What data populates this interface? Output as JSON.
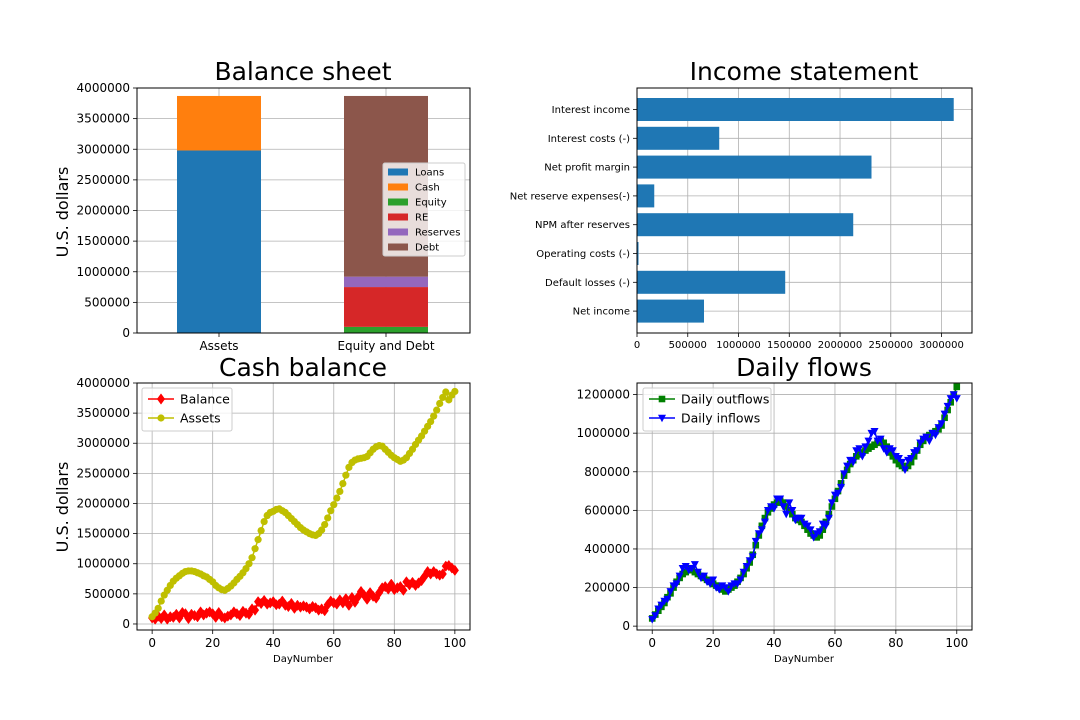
{
  "colors": {
    "c0": "#1f77b4",
    "c1": "#ff7f0e",
    "c2": "#2ca02c",
    "c3": "#d62728",
    "c4": "#9467bd",
    "c5": "#8c564b",
    "balance": "#ff0000",
    "assets": "#bfbf00",
    "outflows": "#008000",
    "inflows": "#0000ff",
    "grid": "#b0b0b0"
  },
  "chart_data": [
    {
      "type": "bar",
      "stacked": true,
      "title": "Balance sheet",
      "ylabel": "U.S. dollars",
      "xlabel": "",
      "ylim": [
        0,
        4000000
      ],
      "yticks": [
        0,
        500000,
        1000000,
        1500000,
        2000000,
        2500000,
        3000000,
        3500000,
        4000000
      ],
      "categories": [
        "Assets",
        "Equity and Debt"
      ],
      "series": [
        {
          "name": "Loans",
          "values": [
            2980000,
            0
          ],
          "color": "#1f77b4"
        },
        {
          "name": "Cash",
          "values": [
            890000,
            0
          ],
          "color": "#ff7f0e"
        },
        {
          "name": "Equity",
          "values": [
            0,
            100000
          ],
          "color": "#2ca02c"
        },
        {
          "name": "RE",
          "values": [
            0,
            650000
          ],
          "color": "#d62728"
        },
        {
          "name": "Reserves",
          "values": [
            0,
            170000
          ],
          "color": "#9467bd"
        },
        {
          "name": "Debt",
          "values": [
            0,
            2950000
          ],
          "color": "#8c564b"
        }
      ],
      "grid": true,
      "legend": "center-right"
    },
    {
      "type": "bar",
      "orientation": "horizontal",
      "title": "Income statement",
      "xlim": [
        0,
        3300000
      ],
      "xticks": [
        0,
        500000,
        1000000,
        1500000,
        2000000,
        2500000,
        3000000
      ],
      "categories": [
        "Interest income",
        "Interest costs (-)",
        "Net profit margin",
        "Net reserve expenses(-)",
        "NPM after reserves",
        "Operating costs (-)",
        "Default losses (-)",
        "Net income"
      ],
      "values": [
        3120000,
        810000,
        2310000,
        170000,
        2130000,
        15000,
        1460000,
        660000
      ],
      "color": "#1f77b4",
      "grid": true
    },
    {
      "type": "line",
      "title": "Cash balance",
      "xlabel": "DayNumber",
      "ylabel": "U.S. dollars",
      "xlim": [
        -5,
        105
      ],
      "ylim": [
        -100000,
        4000000
      ],
      "xticks": [
        0,
        20,
        40,
        60,
        80,
        100
      ],
      "yticks": [
        0,
        500000,
        1000000,
        1500000,
        2000000,
        2500000,
        3000000,
        3500000,
        4000000
      ],
      "series": [
        {
          "name": "Balance",
          "marker": "diamond",
          "color": "#ff0000",
          "values": [
            100000,
            80000,
            130000,
            90000,
            150000,
            80000,
            120000,
            110000,
            160000,
            100000,
            190000,
            170000,
            90000,
            160000,
            140000,
            120000,
            200000,
            150000,
            180000,
            200000,
            170000,
            110000,
            190000,
            120000,
            100000,
            130000,
            150000,
            200000,
            170000,
            140000,
            210000,
            180000,
            160000,
            250000,
            230000,
            370000,
            340000,
            390000,
            330000,
            350000,
            370000,
            320000,
            330000,
            380000,
            310000,
            290000,
            340000,
            260000,
            310000,
            280000,
            300000,
            280000,
            250000,
            290000,
            270000,
            230000,
            250000,
            220000,
            320000,
            380000,
            350000,
            330000,
            400000,
            350000,
            420000,
            310000,
            440000,
            360000,
            450000,
            540000,
            480000,
            410000,
            520000,
            460000,
            430000,
            520000,
            600000,
            620000,
            580000,
            660000,
            570000,
            600000,
            620000,
            560000,
            700000,
            650000,
            690000,
            640000,
            680000,
            720000,
            790000,
            870000,
            830000,
            870000,
            830000,
            810000,
            830000,
            960000,
            970000,
            930000,
            890000
          ]
        },
        {
          "name": "Assets",
          "marker": "circle",
          "color": "#bfbf00",
          "values": [
            120000,
            180000,
            260000,
            380000,
            480000,
            560000,
            640000,
            710000,
            760000,
            800000,
            840000,
            870000,
            880000,
            880000,
            870000,
            850000,
            830000,
            800000,
            780000,
            740000,
            700000,
            640000,
            600000,
            570000,
            560000,
            590000,
            630000,
            680000,
            740000,
            790000,
            850000,
            920000,
            1000000,
            1100000,
            1250000,
            1400000,
            1550000,
            1700000,
            1800000,
            1850000,
            1870000,
            1900000,
            1910000,
            1880000,
            1850000,
            1800000,
            1750000,
            1700000,
            1650000,
            1600000,
            1560000,
            1530000,
            1500000,
            1480000,
            1470000,
            1500000,
            1560000,
            1650000,
            1760000,
            1880000,
            1980000,
            2090000,
            2200000,
            2330000,
            2470000,
            2600000,
            2680000,
            2720000,
            2740000,
            2750000,
            2760000,
            2780000,
            2840000,
            2900000,
            2940000,
            2960000,
            2950000,
            2900000,
            2850000,
            2800000,
            2760000,
            2730000,
            2700000,
            2720000,
            2760000,
            2830000,
            2900000,
            2980000,
            3050000,
            3120000,
            3200000,
            3280000,
            3360000,
            3450000,
            3550000,
            3660000,
            3760000,
            3850000,
            3720000,
            3800000,
            3860000
          ]
        }
      ],
      "grid": true,
      "legend": "upper-left"
    },
    {
      "type": "line",
      "title": "Daily flows",
      "xlabel": "DayNumber",
      "xlim": [
        -5,
        105
      ],
      "ylim": [
        -20000,
        1260000
      ],
      "xticks": [
        0,
        20,
        40,
        60,
        80,
        100
      ],
      "yticks": [
        0,
        200000,
        400000,
        600000,
        800000,
        1000000,
        1200000
      ],
      "series": [
        {
          "name": "Daily outflows",
          "marker": "square",
          "color": "#008000",
          "values": [
            40000,
            60000,
            80000,
            100000,
            120000,
            150000,
            170000,
            200000,
            230000,
            250000,
            270000,
            280000,
            300000,
            290000,
            280000,
            270000,
            260000,
            250000,
            240000,
            230000,
            220000,
            210000,
            200000,
            190000,
            180000,
            190000,
            200000,
            210000,
            230000,
            250000,
            270000,
            300000,
            330000,
            370000,
            420000,
            470000,
            520000,
            560000,
            590000,
            610000,
            630000,
            640000,
            650000,
            640000,
            620000,
            600000,
            580000,
            560000,
            550000,
            540000,
            520000,
            500000,
            480000,
            470000,
            460000,
            470000,
            500000,
            540000,
            580000,
            620000,
            660000,
            700000,
            740000,
            780000,
            810000,
            840000,
            860000,
            880000,
            890000,
            900000,
            910000,
            920000,
            930000,
            940000,
            950000,
            960000,
            950000,
            930000,
            900000,
            880000,
            860000,
            840000,
            830000,
            820000,
            830000,
            850000,
            880000,
            910000,
            940000,
            960000,
            980000,
            990000,
            1000000,
            1010000,
            1020000,
            1040000,
            1080000,
            1120000,
            1160000,
            1200000,
            1240000
          ]
        },
        {
          "name": "Daily inflows",
          "marker": "triangle-down",
          "color": "#0000ff",
          "values": [
            35000,
            55000,
            90000,
            110000,
            130000,
            140000,
            180000,
            210000,
            220000,
            260000,
            300000,
            310000,
            290000,
            300000,
            320000,
            280000,
            250000,
            260000,
            230000,
            220000,
            240000,
            200000,
            190000,
            210000,
            200000,
            180000,
            210000,
            220000,
            220000,
            240000,
            280000,
            310000,
            340000,
            360000,
            440000,
            480000,
            500000,
            540000,
            600000,
            620000,
            610000,
            660000,
            660000,
            620000,
            580000,
            640000,
            600000,
            550000,
            560000,
            560000,
            530000,
            520000,
            500000,
            460000,
            480000,
            490000,
            530000,
            520000,
            560000,
            640000,
            680000,
            690000,
            720000,
            790000,
            830000,
            860000,
            850000,
            910000,
            920000,
            880000,
            930000,
            960000,
            1000000,
            1010000,
            960000,
            970000,
            920000,
            900000,
            920000,
            910000,
            880000,
            870000,
            850000,
            810000,
            860000,
            870000,
            900000,
            910000,
            950000,
            970000,
            980000,
            960000,
            1000000,
            990000,
            1030000,
            1050000,
            1100000,
            1140000,
            1180000,
            1200000,
            1180000
          ]
        }
      ],
      "grid": true,
      "legend": "upper-left"
    }
  ]
}
